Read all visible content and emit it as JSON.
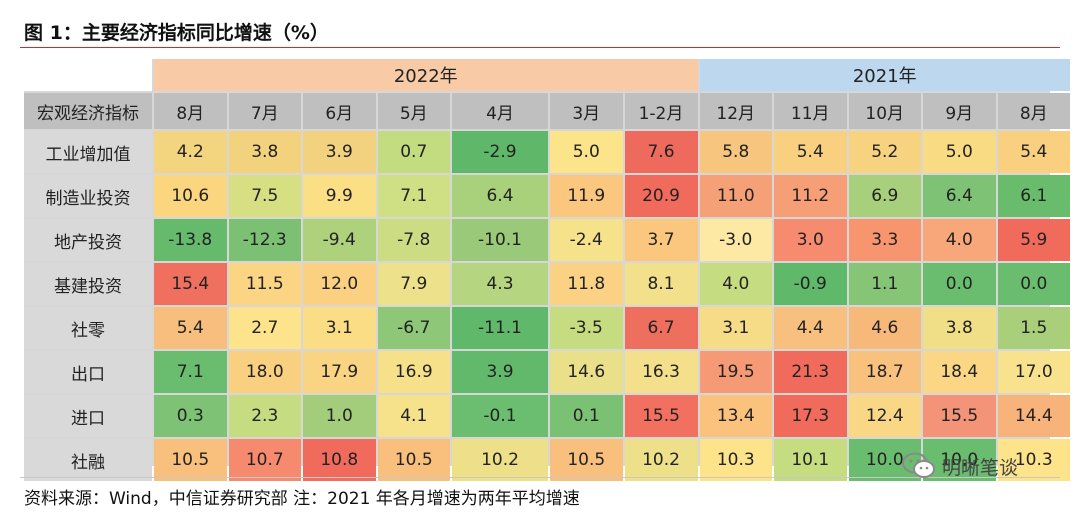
{
  "title": "图 1：主要经济指标同比增速（%）",
  "year_groups": [
    {
      "label": "2022年",
      "span": 7,
      "color": "#f8cba6"
    },
    {
      "label": "2021年",
      "span": 5,
      "color": "#bdd7ee"
    }
  ],
  "header_color": "#bfbfbf",
  "row_label_color": "#d9d9d9",
  "columns": [
    "宏观经济指标",
    "8月",
    "7月",
    "6月",
    "5月",
    "4月",
    "3月",
    "1-2月",
    "12月",
    "11月",
    "10月",
    "9月",
    "8月"
  ],
  "rows": [
    {
      "label": "工业增加值",
      "values": [
        "4.2",
        "3.8",
        "3.9",
        "0.7",
        "-2.9",
        "5.0",
        "7.6",
        "5.8",
        "5.4",
        "5.2",
        "5.0",
        "5.4"
      ],
      "colors": [
        "#f2d57e",
        "#f3d27e",
        "#f2d27e",
        "#c3dc80",
        "#5fb86a",
        "#fbe48a",
        "#ee6a5c",
        "#f7c57e",
        "#f8d07f",
        "#f8d37f",
        "#f9db84",
        "#f8d07f"
      ]
    },
    {
      "label": "制造业投资",
      "values": [
        "10.6",
        "7.5",
        "9.9",
        "7.1",
        "6.4",
        "11.9",
        "20.9",
        "11.0",
        "11.2",
        "6.9",
        "6.4",
        "6.1"
      ],
      "colors": [
        "#fbd67e",
        "#d6e083",
        "#fbdf85",
        "#cfdf83",
        "#a9d07b",
        "#fbc77e",
        "#f06b5c",
        "#f6a077",
        "#f69f77",
        "#a8cf7b",
        "#7ec276",
        "#6abc6d"
      ]
    },
    {
      "label": "地产投资",
      "values": [
        "-13.8",
        "-12.3",
        "-9.4",
        "-7.8",
        "-10.1",
        "-2.4",
        "3.7",
        "-3.0",
        "3.0",
        "3.3",
        "4.0",
        "5.9"
      ],
      "colors": [
        "#66ba6b",
        "#7cc173",
        "#aed17c",
        "#cbdc82",
        "#9ac97a",
        "#f5e28b",
        "#fbc77e",
        "#fde8a4",
        "#f68b6f",
        "#f7956f",
        "#f7a779",
        "#f06b5c"
      ]
    },
    {
      "label": "基建投资",
      "values": [
        "15.4",
        "11.5",
        "12.0",
        "7.9",
        "4.3",
        "11.8",
        "8.1",
        "4.0",
        "-0.9",
        "1.1",
        "0.0",
        "0.0"
      ],
      "colors": [
        "#f07060",
        "#fbd584",
        "#fbd080",
        "#eee18c",
        "#b5d580",
        "#fbd283",
        "#f2e08a",
        "#c6dc81",
        "#60b96a",
        "#86c575",
        "#6abd6e",
        "#6abd6e"
      ]
    },
    {
      "label": "社零",
      "values": [
        "5.4",
        "2.7",
        "3.1",
        "-6.7",
        "-11.1",
        "-3.5",
        "6.7",
        "3.1",
        "4.4",
        "4.6",
        "3.8",
        "1.5"
      ],
      "colors": [
        "#f7be7e",
        "#fde38c",
        "#fbdd85",
        "#8ec777",
        "#60b96a",
        "#c6dc81",
        "#ef6f5e",
        "#f7dc87",
        "#f8c07e",
        "#f7b97a",
        "#f0df87",
        "#a9cf7b"
      ]
    },
    {
      "label": "出口",
      "values": [
        "7.1",
        "18.0",
        "17.9",
        "16.9",
        "3.9",
        "14.6",
        "16.3",
        "19.5",
        "21.3",
        "18.7",
        "18.4",
        "17.0"
      ],
      "colors": [
        "#6abd6e",
        "#f8d07f",
        "#f9d482",
        "#f6e08a",
        "#63b96b",
        "#eae089",
        "#f4e08a",
        "#f69a75",
        "#f06b5c",
        "#f9c17e",
        "#fbd785",
        "#f8e28d"
      ]
    },
    {
      "label": "进口",
      "values": [
        "0.3",
        "2.3",
        "1.0",
        "4.1",
        "-0.1",
        "0.1",
        "15.5",
        "13.4",
        "17.3",
        "12.4",
        "15.5",
        "14.4"
      ],
      "colors": [
        "#7ec276",
        "#c5dc81",
        "#a3cd7b",
        "#f5e28b",
        "#6bbd6f",
        "#7bc174",
        "#f2705f",
        "#fbc27e",
        "#f16b5c",
        "#f9d784",
        "#f39479",
        "#f8b37a"
      ]
    },
    {
      "label": "社融",
      "values": [
        "10.5",
        "10.7",
        "10.8",
        "10.5",
        "10.2",
        "10.5",
        "10.2",
        "10.3",
        "10.1",
        "10.0",
        "10.0",
        "10.3"
      ],
      "colors": [
        "#f9c07d",
        "#f68a6f",
        "#f06b5c",
        "#f9c07d",
        "#eee089",
        "#f9c07d",
        "#eee089",
        "#fde38a",
        "#c6dc81",
        "#6abd6e",
        "#6abd6e",
        "#fde38a"
      ]
    }
  ],
  "source": "资料来源：Wind，中信证券研究部  注：2021 年各月增速为两年平均增速",
  "watermark_brand": "明晰笔谈"
}
